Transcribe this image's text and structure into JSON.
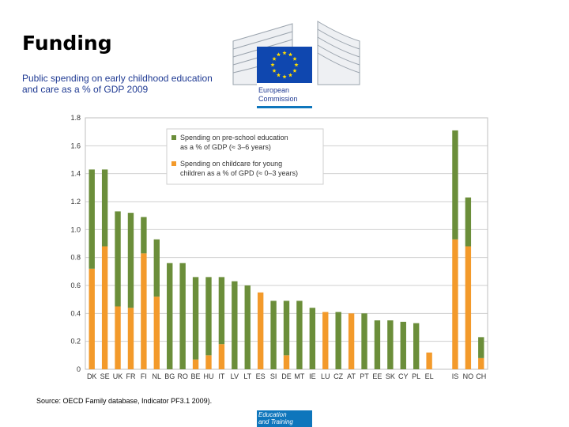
{
  "header": {
    "title": "Funding",
    "subtitle": "Public spending on early childhood education and care as a % of GDP 2009"
  },
  "logo": {
    "line1": "European",
    "line2": "Commission",
    "flag_color": "#0f47af",
    "star_color": "#ffdd00"
  },
  "source": "Source: OECD Family database, Indicator PF3.1 2009).",
  "footer": {
    "line1": "Education",
    "line2": "and Training"
  },
  "chart_data": {
    "type": "bar",
    "stacked": true,
    "categories": [
      "DK",
      "SE",
      "UK",
      "FR",
      "FI",
      "NL",
      "BG",
      "RO",
      "BE",
      "HU",
      "IT",
      "LV",
      "LT",
      "ES",
      "SI",
      "DE",
      "MT",
      "IE",
      "LU",
      "CZ",
      "AT",
      "PT",
      "EE",
      "SK",
      "CY",
      "PL",
      "EL",
      "",
      "IS",
      "NO",
      "CH"
    ],
    "series": [
      {
        "name": "Spending on childcare for young children as a % of GPD (≈ 0–3 years)",
        "color": "#f39a2b",
        "values": [
          0.72,
          0.88,
          0.45,
          0.44,
          0.83,
          0.52,
          0,
          0,
          0.07,
          0.1,
          0.18,
          0,
          0,
          0.55,
          0,
          0.1,
          0,
          0,
          0.41,
          0,
          0.4,
          0,
          0,
          0,
          0,
          0,
          0.12,
          null,
          0.93,
          0.88,
          0.08
        ]
      },
      {
        "name": "Spending on pre-school education as a % of GDP (≈ 3–6 years)",
        "color": "#6b8e3a",
        "values": [
          0.71,
          0.55,
          0.68,
          0.68,
          0.26,
          0.41,
          0.76,
          0.76,
          0.59,
          0.56,
          0.48,
          0.63,
          0.6,
          0,
          0.49,
          0.39,
          0.49,
          0.44,
          0,
          0.41,
          0,
          0.4,
          0.35,
          0.35,
          0.34,
          0.33,
          0,
          null,
          0.78,
          0.35,
          0.15
        ]
      }
    ],
    "yticks": [
      "0",
      "0.2",
      "0.4",
      "0.6",
      "0.8",
      "1.0",
      "1.2",
      "1.4",
      "1.6",
      "1.8"
    ],
    "ylim": [
      0,
      1.8
    ],
    "grid": true,
    "legend_position": "top-center",
    "legend": [
      {
        "line1": "Spending on pre-school education",
        "line2": "as a % of GDP (≈ 3–6 years)",
        "color": "#6b8e3a"
      },
      {
        "line1": "Spending on childcare for young",
        "line2": "children as a % of GPD (≈ 0–3 years)",
        "color": "#f39a2b"
      }
    ]
  }
}
